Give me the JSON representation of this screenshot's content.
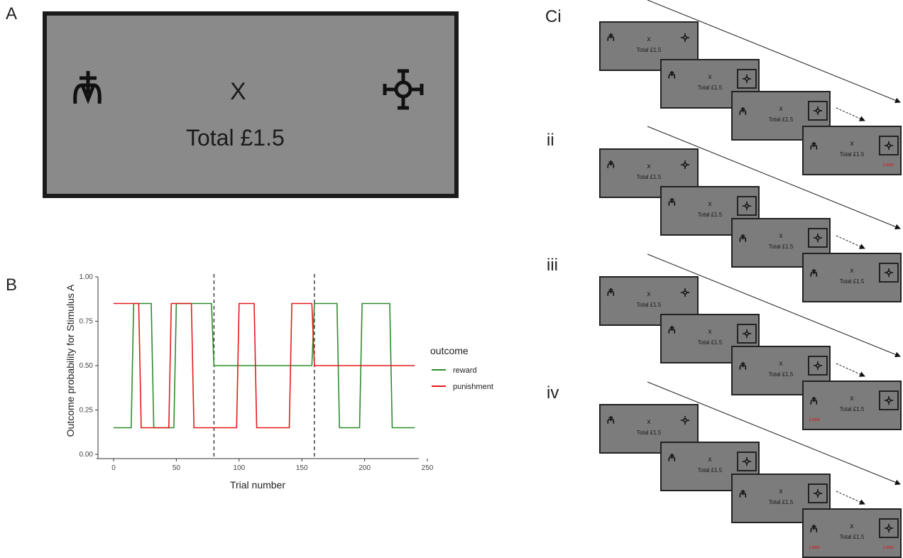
{
  "panels": {
    "a": "A",
    "b": "B",
    "ci": "Ci",
    "ii": "ii",
    "iii": "iii",
    "iv": "iv"
  },
  "stimulus": {
    "center": "X",
    "total": "Total £1.5"
  },
  "sequence": {
    "center": "x",
    "total": "Total £1.5",
    "loss": "Loss"
  },
  "legend": {
    "title": "outcome",
    "reward": "reward",
    "punishment": "punishment"
  },
  "colors": {
    "reward": "#2e8b2e",
    "punishment": "#e41a1c",
    "frame_gray": "#8a8a8a"
  },
  "chart_data": {
    "type": "line",
    "xlabel": "Trial number",
    "ylabel": "Outcome probability for Stimulus A",
    "xlim": [
      0,
      250
    ],
    "ylim": [
      0,
      1
    ],
    "xticks": [
      0,
      50,
      100,
      150,
      200,
      250
    ],
    "yticks": [
      "0.00",
      "0.25",
      "0.50",
      "0.75",
      "1.00"
    ],
    "vlines": [
      80,
      160
    ],
    "series": [
      {
        "name": "reward",
        "color": "#2e8b2e",
        "x": [
          0,
          14,
          16,
          30,
          32,
          48,
          50,
          78,
          80,
          158,
          160,
          178,
          180,
          196,
          198,
          220,
          222,
          240
        ],
        "y": [
          0.15,
          0.15,
          0.85,
          0.85,
          0.15,
          0.15,
          0.85,
          0.85,
          0.5,
          0.5,
          0.85,
          0.85,
          0.15,
          0.15,
          0.85,
          0.85,
          0.15,
          0.15
        ]
      },
      {
        "name": "punishment",
        "color": "#e41a1c",
        "x": [
          0,
          20,
          22,
          44,
          46,
          62,
          64,
          98,
          100,
          112,
          114,
          140,
          142,
          158,
          160,
          240
        ],
        "y": [
          0.85,
          0.85,
          0.15,
          0.15,
          0.85,
          0.85,
          0.15,
          0.15,
          0.85,
          0.85,
          0.15,
          0.15,
          0.85,
          0.85,
          0.5,
          0.5
        ]
      }
    ]
  }
}
